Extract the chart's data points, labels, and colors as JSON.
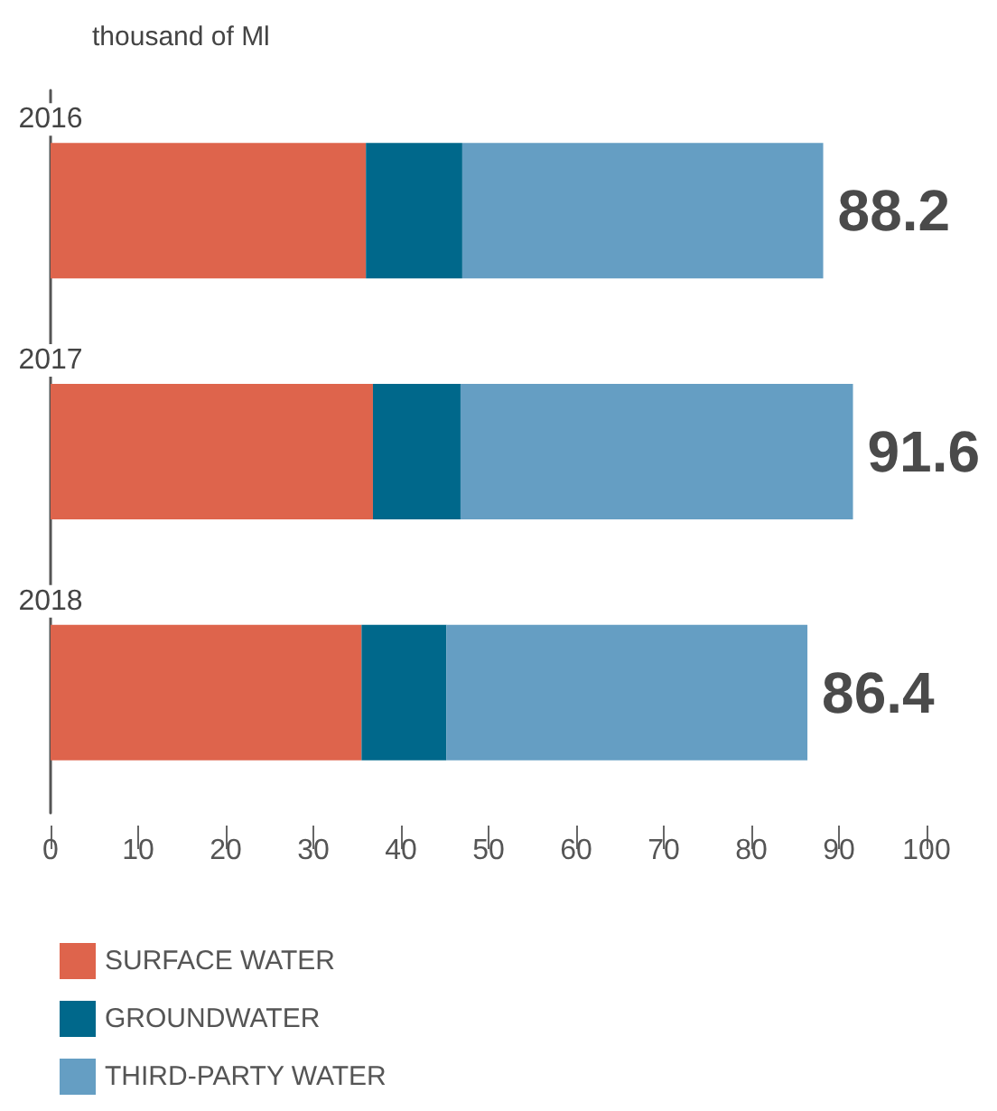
{
  "chart_data": {
    "type": "bar",
    "orientation": "horizontal",
    "stacked": true,
    "title": "thousand of Ml",
    "categories": [
      "2016",
      "2017",
      "2018"
    ],
    "series": [
      {
        "name": "SURFACE WATER",
        "color": "#de644c",
        "values": [
          36.0,
          36.8,
          35.5
        ]
      },
      {
        "name": "GROUNDWATER",
        "color": "#00688b",
        "values": [
          11.0,
          10.0,
          9.7
        ]
      },
      {
        "name": "THIRD-PARTY WATER",
        "color": "#659ec3",
        "values": [
          41.2,
          44.8,
          41.2
        ]
      }
    ],
    "totals": [
      "88.2",
      "91.6",
      "86.4"
    ],
    "xlim": [
      0,
      100
    ],
    "xticks": [
      0,
      10,
      20,
      30,
      40,
      50,
      60,
      70,
      80,
      90,
      100
    ],
    "grid": false,
    "legend": "bottom left"
  }
}
